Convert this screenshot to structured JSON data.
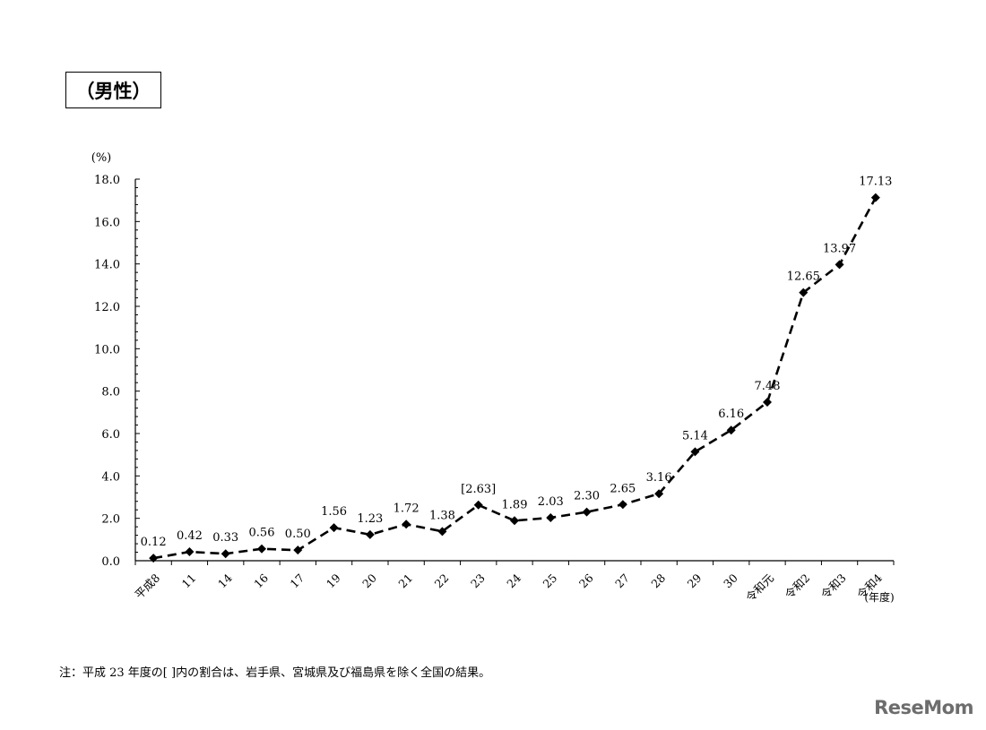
{
  "title": "（男性）",
  "note": "注：平成 23 年度の[ ]内の割合は、岩手県、宮城県及び福島県を除く全国の結果。",
  "logo": "ReseMom",
  "chart_data": {
    "type": "line",
    "ylabel": "(%)",
    "xlabel": "(年度)",
    "ylim": [
      0,
      18
    ],
    "yticks": [
      "0.0",
      "2.0",
      "4.0",
      "6.0",
      "8.0",
      "10.0",
      "12.0",
      "14.0",
      "16.0",
      "18.0"
    ],
    "categories": [
      "平成8",
      "11",
      "14",
      "16",
      "17",
      "19",
      "20",
      "21",
      "22",
      "23",
      "24",
      "25",
      "26",
      "27",
      "28",
      "29",
      "30",
      "令和元",
      "令和2",
      "令和3",
      "令和4"
    ],
    "values": [
      0.12,
      0.42,
      0.33,
      0.56,
      0.5,
      1.56,
      1.23,
      1.72,
      1.38,
      2.63,
      1.89,
      2.03,
      2.3,
      2.65,
      3.16,
      5.14,
      6.16,
      7.48,
      12.65,
      13.97,
      17.13
    ],
    "labels": [
      "0.12",
      "0.42",
      "0.33",
      "0.56",
      "0.50",
      "1.56",
      "1.23",
      "1.72",
      "1.38",
      "[2.63]",
      "1.89",
      "2.03",
      "2.30",
      "2.65",
      "3.16",
      "5.14",
      "6.16",
      "7.48",
      "12.65",
      "13.97",
      "17.13"
    ],
    "line_style": "dashed",
    "marker": "diamond",
    "grid": false,
    "color": "#000000"
  }
}
